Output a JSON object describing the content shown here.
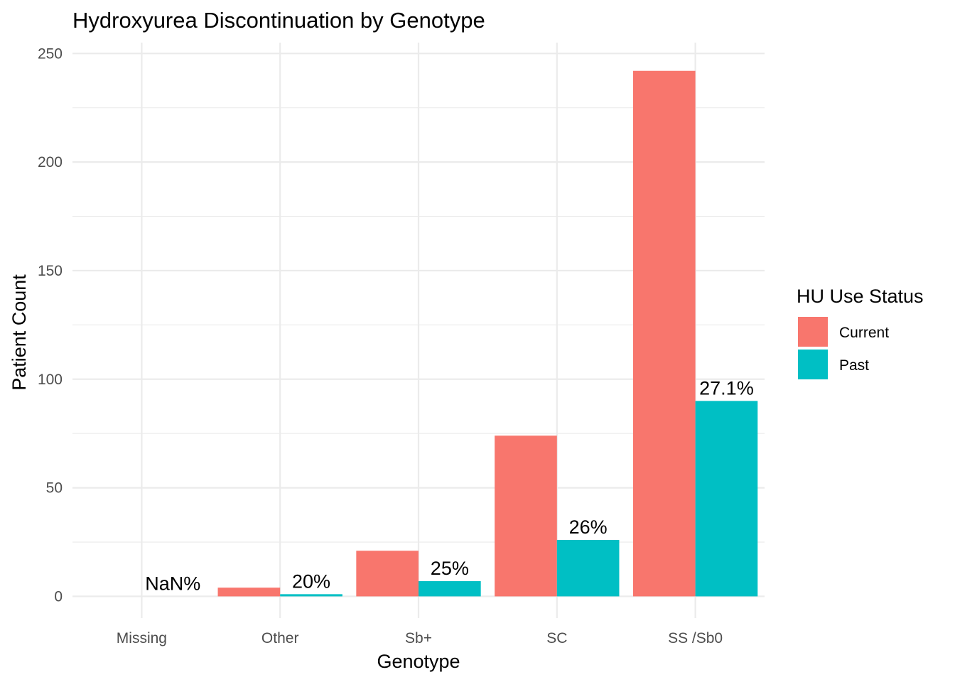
{
  "chart_data": {
    "type": "bar",
    "title": "Hydroxyurea Discontinuation by Genotype",
    "xlabel": "Genotype",
    "ylabel": "Patient Count",
    "ylim": [
      -10,
      255
    ],
    "yticks": [
      0,
      50,
      100,
      150,
      200,
      250
    ],
    "categories": [
      "Missing",
      "Other",
      "Sb+",
      "SC",
      "SS /Sb0"
    ],
    "series": [
      {
        "name": "Current",
        "color": "#F8766D",
        "values": [
          0,
          4,
          21,
          74,
          242
        ]
      },
      {
        "name": "Past",
        "color": "#00BFC4",
        "values": [
          0,
          1,
          7,
          26,
          90
        ]
      }
    ],
    "annotations": [
      {
        "category": "Missing",
        "text": "NaN%",
        "y": 0
      },
      {
        "category": "Other",
        "text": "20%",
        "y": 1
      },
      {
        "category": "Sb+",
        "text": "25%",
        "y": 7
      },
      {
        "category": "SC",
        "text": "26%",
        "y": 26
      },
      {
        "category": "SS /Sb0",
        "text": "27.1%",
        "y": 90
      }
    ],
    "legend": {
      "title": "HU Use Status",
      "position": "right",
      "items": [
        "Current",
        "Past"
      ]
    },
    "grid": true
  }
}
